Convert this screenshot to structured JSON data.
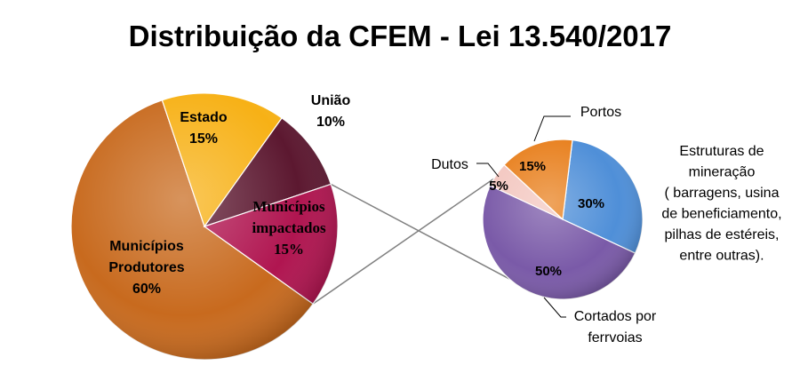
{
  "chart_data": {
    "type": "bar-of-pie",
    "title": "Distribuição da CFEM - Lei 13.540/2017",
    "colors": {
      "municipios_produtores": "#C86A1E",
      "estado": "#F7B116",
      "uniao": "#5C1830",
      "municipios_impactados": "#B01550",
      "estruturas": "#4F8FD8",
      "cortados": "#7A5AA8",
      "dutos": "#F3C7C0",
      "portos": "#E8801E",
      "connector": "#808080"
    },
    "main_pie": {
      "slices": [
        {
          "label": "Municípios Produtores",
          "label_lines": [
            "Municípios",
            "Produtores"
          ],
          "value": 60,
          "value_label": "60%"
        },
        {
          "label": "Estado",
          "label_lines": [
            "Estado"
          ],
          "value": 15,
          "value_label": "15%"
        },
        {
          "label": "União",
          "label_lines": [
            "União"
          ],
          "value": 10,
          "value_label": "10%"
        },
        {
          "label": "Municípios impactados",
          "label_lines": [
            "Municípios",
            "impactados"
          ],
          "value": 15,
          "value_label": "15%"
        }
      ]
    },
    "secondary_pie": {
      "breakdown_of": "Municípios impactados",
      "slices": [
        {
          "label": "Estruturas de mineração ( barragens, usina de beneficiamento, pilhas de estéreis, entre outras).",
          "label_lines": [
            "Estruturas de",
            "mineração",
            "( barragens, usina",
            "de beneficiamento,",
            "pilhas de estéreis,",
            "entre outras)."
          ],
          "value": 30,
          "value_label": "30%"
        },
        {
          "label": "Cortados por ferrvoias",
          "label_lines": [
            "Cortados por",
            "ferrvoias"
          ],
          "value": 50,
          "value_label": "50%"
        },
        {
          "label": "Dutos",
          "label_lines": [
            "Dutos"
          ],
          "value": 5,
          "value_label": "5%"
        },
        {
          "label": "Portos",
          "label_lines": [
            "Portos"
          ],
          "value": 15,
          "value_label": "15%"
        }
      ]
    }
  }
}
